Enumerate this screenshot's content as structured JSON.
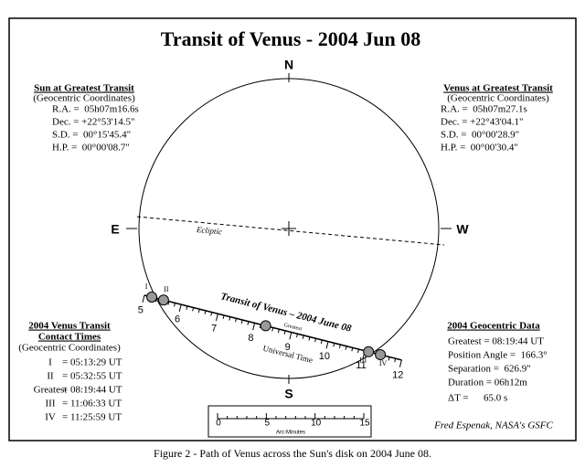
{
  "title": "Transit of Venus - 2004 Jun 08",
  "caption": "Figure 2 - Path of Venus across the Sun's disk on 2004 June 08.",
  "compass": {
    "north": "N",
    "south": "S",
    "east": "E",
    "west": "W"
  },
  "ecliptic_label": "Ecliptic",
  "sun_box": {
    "title": "Sun at Greatest Transit",
    "subtitle": "(Geocentric Coordinates)",
    "rows": [
      "R.A. =  05h07m16.6s",
      "Dec. = +22°53'14.5\"",
      "S.D. =  00°15'45.4\"",
      "H.P. =  00°00'08.7\""
    ]
  },
  "venus_box": {
    "title": "Venus at Greatest Transit",
    "subtitle": "(Geocentric Coordinates)",
    "rows": [
      "R.A. =  05h07m27.1s",
      "Dec. = +22°43'04.1\"",
      "S.D. =  00°00'28.9\"",
      "H.P. =  00°00'30.4\""
    ]
  },
  "path": {
    "label": "Transit of Venus – 2004 June 08",
    "greatest_label": "Greatest",
    "time_label": "Universal Time",
    "hours": [
      "5",
      "6",
      "7",
      "8",
      "9",
      "10",
      "11",
      "12"
    ],
    "contacts": [
      "I",
      "II",
      "III",
      "IV"
    ]
  },
  "contact_times": {
    "title": "2004 Venus Transit",
    "title2": "Contact Times",
    "subtitle": "(Geocentric Coordinates)",
    "rows": [
      [
        "I",
        "= 05:13:29 UT"
      ],
      [
        "II",
        "= 05:32:55 UT"
      ],
      [
        "Greatest",
        "= 08:19:44 UT"
      ],
      [
        "III",
        "= 11:06:33 UT"
      ],
      [
        "IV",
        "= 11:25:59 UT"
      ]
    ]
  },
  "geocentric_data": {
    "title": "2004 Geocentric Data",
    "rows": [
      "Greatest = 08:19:44 UT",
      "Position Angle =  166.3°",
      "Separation =  626.9\"",
      "Duration = 06h12m",
      "ΔT =      65.0 s"
    ]
  },
  "scale": {
    "labels": [
      "0",
      "5",
      "10",
      "15"
    ],
    "unit": "Arc-Minutes"
  },
  "credit": "Fred Espenak, NASA's GSFC"
}
